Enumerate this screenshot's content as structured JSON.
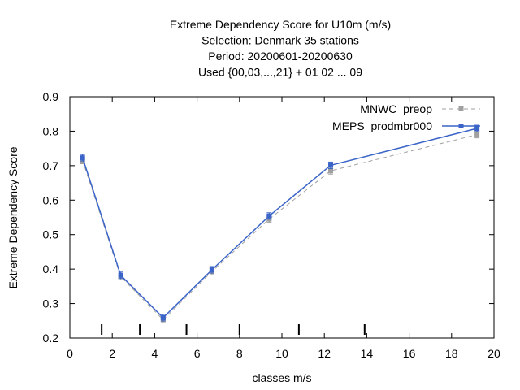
{
  "chart_data": {
    "type": "line",
    "title_lines": [
      "Extreme Dependency Score  for U10m (m/s)",
      "Selection: Denmark     35 stations",
      "Period: 20200601-20200630",
      "Used {00,03,...,21} + 01 02 ... 09"
    ],
    "xlabel": "classes m/s",
    "ylabel": "Extreme Dependency Score",
    "xlim": [
      0,
      20
    ],
    "ylim": [
      0.2,
      0.9
    ],
    "xticks": [
      "0",
      "2",
      "4",
      "6",
      "8",
      "10",
      "12",
      "14",
      "16",
      "18",
      "20"
    ],
    "yticks": [
      "0.2",
      "0.3",
      "0.4",
      "0.5",
      "0.6",
      "0.7",
      "0.8",
      "0.9"
    ],
    "class_markers_x": [
      1.5,
      3.3,
      5.5,
      8.0,
      10.8,
      13.9
    ],
    "legend_position": "top-right",
    "grid": false,
    "series": [
      {
        "name": "MNWC_preop",
        "color": "#a0a0a0",
        "dashed": true,
        "x": [
          0.6,
          2.4,
          4.4,
          6.7,
          9.4,
          12.3,
          19.2
        ],
        "y": [
          0.715,
          0.378,
          0.253,
          0.393,
          0.545,
          0.685,
          0.79
        ]
      },
      {
        "name": "MEPS_prodmbr000",
        "color": "#3a64c8",
        "dashed": false,
        "x": [
          0.6,
          2.4,
          4.4,
          6.7,
          9.4,
          12.3,
          19.2
        ],
        "y": [
          0.723,
          0.382,
          0.259,
          0.398,
          0.554,
          0.701,
          0.808
        ]
      }
    ]
  }
}
